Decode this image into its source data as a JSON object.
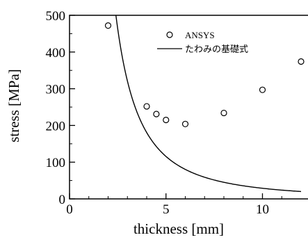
{
  "chart_data": {
    "type": "scatter",
    "xlabel": "thickness [mm]",
    "ylabel": "stress [MPa]",
    "xlim": [
      0,
      12
    ],
    "ylim": [
      0,
      500
    ],
    "xticks": [
      0,
      5,
      10
    ],
    "yticks": [
      0,
      100,
      200,
      300,
      400,
      500
    ],
    "legend_position": "top-right",
    "series": [
      {
        "name": "ANSYS",
        "type": "scatter",
        "marker": "open-circle",
        "x": [
          2,
          4,
          4.5,
          5,
          6,
          8,
          10,
          12
        ],
        "y": [
          472,
          252,
          231,
          215,
          204,
          234,
          297,
          374
        ]
      },
      {
        "name": "たわみの基礎式",
        "type": "line",
        "formula_k": 2890,
        "formula_exponent": -2,
        "x_range": [
          2.4,
          12
        ]
      }
    ]
  }
}
